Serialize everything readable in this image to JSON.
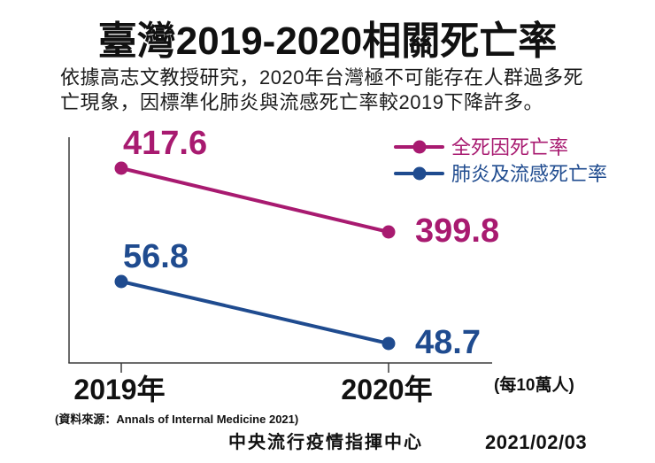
{
  "intro": {
    "lines": [
      "依據高志文教授研究，2020年台灣極不可能存在人群過多死",
      "亡現象，因標準化肺炎與流感死亡率較2019下降許多。"
    ]
  },
  "chart_data": {
    "type": "line",
    "title": "臺灣2019-2020相關死亡率",
    "categories": [
      "2019年",
      "2020年"
    ],
    "series": [
      {
        "name": "全死因死亡率",
        "values": [
          417.6,
          399.8
        ],
        "color": "#A81A70"
      },
      {
        "name": "肺炎及流感死亡率",
        "values": [
          56.8,
          48.7
        ],
        "color": "#1F4B8F"
      }
    ],
    "unit": "(每10萬人)",
    "legend": "top-right",
    "grid": false
  },
  "source": "(資料來源：Annals of Internal Medicine 2021)",
  "footer": {
    "organization": "中央流行疫情指揮中心",
    "date": "2021/02/03"
  },
  "colors": {
    "axis": "#3a3a3a"
  }
}
